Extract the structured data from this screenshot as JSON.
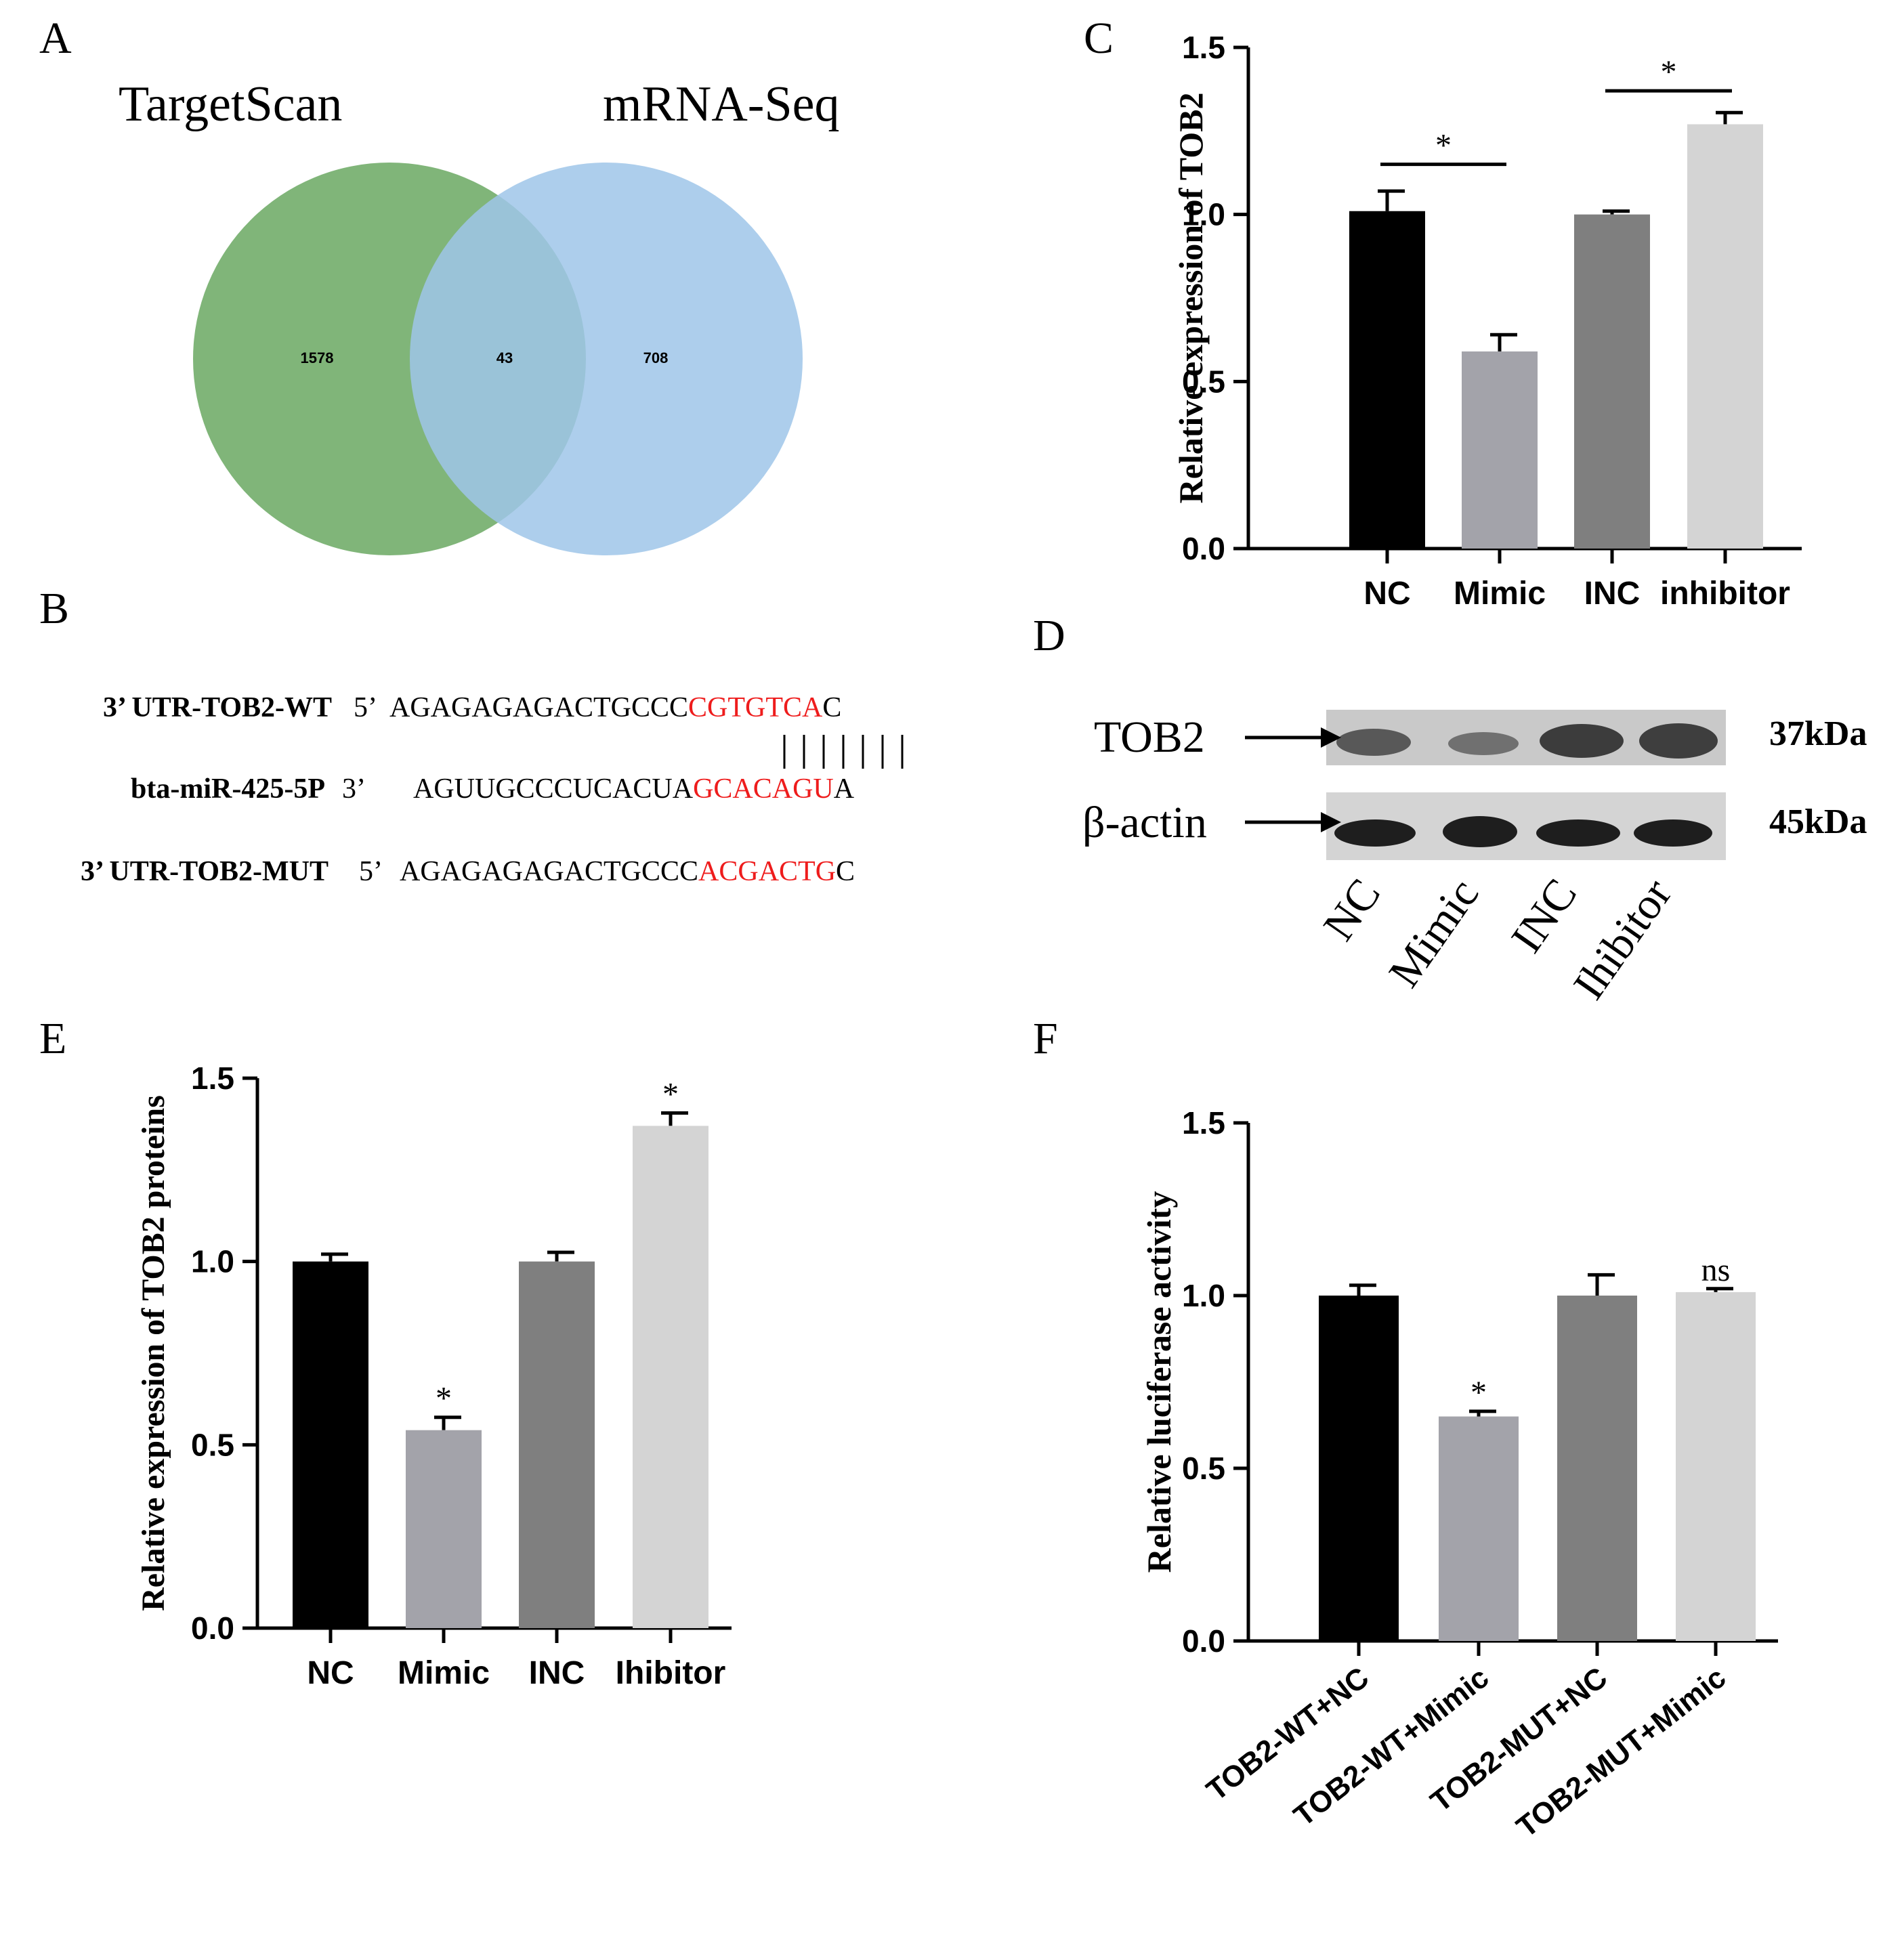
{
  "panels": {
    "A": {
      "letter": "A"
    },
    "B": {
      "letter": "B"
    },
    "C": {
      "letter": "C"
    },
    "D": {
      "letter": "D"
    },
    "E": {
      "letter": "E"
    },
    "F": {
      "letter": "F"
    }
  },
  "venn": {
    "left_label": "TargetScan",
    "right_label": "mRNA-Seq",
    "left_only": "1578",
    "overlap": "43",
    "right_only": "708",
    "colors": {
      "left": "#6aa861",
      "right": "#9fc6e9"
    }
  },
  "sequences": [
    {
      "name": "3’ UTR-TOB2-WT",
      "end": "5’",
      "prefix": "AGAGAGAGACTGCCC",
      "highlight": "CGTGTCA",
      "suffix": "C"
    },
    {
      "name": "bta-miR-425-5P",
      "end": "3’",
      "prefix": "AGUUGCCCUCACUA",
      "highlight": "GCACAGU",
      "suffix": "A"
    },
    {
      "name": "3’ UTR-TOB2-MUT",
      "end": "5’",
      "prefix": "AGAGAGAGACTGCCC",
      "highlight": "ACGACTG",
      "suffix": "C"
    }
  ],
  "pairing_bars": 7,
  "western_blot": {
    "bands": [
      {
        "label": "TOB2",
        "size": "37kDa"
      },
      {
        "label": "β-actin",
        "size": "45kDa"
      }
    ],
    "lanes": [
      "NC",
      "Mimic",
      "INC",
      "Ihibitor"
    ]
  },
  "chart_data": [
    {
      "panel": "C",
      "type": "bar",
      "categories": [
        "NC",
        "Mimic",
        "INC",
        "inhibitor"
      ],
      "values": [
        1.01,
        0.59,
        1.0,
        1.27
      ],
      "errors": [
        0.06,
        0.05,
        0.01,
        0.035
      ],
      "colors": [
        "#000000",
        "#a3a3aa",
        "#7f7f7f",
        "#d4d4d4"
      ],
      "title": "",
      "xlabel": "",
      "ylabel": "Relative expression of TOB2",
      "ylim": [
        0,
        1.5
      ],
      "yticks": [
        "0.0",
        "0.5",
        "1.0",
        "1.5"
      ],
      "significance": [
        {
          "from": 0,
          "to": 1,
          "label": "*",
          "y": 1.15
        },
        {
          "from": 2,
          "to": 3,
          "label": "*",
          "y": 1.37
        }
      ]
    },
    {
      "panel": "E",
      "type": "bar",
      "categories": [
        "NC",
        "Mimic",
        "INC",
        "Ihibitor"
      ],
      "values": [
        1.0,
        0.54,
        1.0,
        1.37
      ],
      "errors": [
        0.02,
        0.035,
        0.025,
        0.035
      ],
      "colors": [
        "#000000",
        "#a3a3aa",
        "#7f7f7f",
        "#d4d4d4"
      ],
      "title": "",
      "xlabel": "",
      "ylabel": "Relative expression of TOB2 proteins",
      "ylim": [
        0,
        1.5
      ],
      "yticks": [
        "0.0",
        "0.5",
        "1.0",
        "1.5"
      ],
      "bar_marks": [
        "",
        "*",
        "",
        "*"
      ]
    },
    {
      "panel": "F",
      "type": "bar",
      "categories": [
        "TOB2-WT+NC",
        "TOB2-WT+Mimic",
        "TOB2-MUT+NC",
        "TOB2-MUT+Mimic"
      ],
      "values": [
        1.0,
        0.65,
        1.0,
        1.01
      ],
      "errors": [
        0.03,
        0.015,
        0.06,
        0.01
      ],
      "colors": [
        "#000000",
        "#a3a3aa",
        "#7f7f7f",
        "#d4d4d4"
      ],
      "title": "",
      "xlabel": "",
      "ylabel": "Relative luciferase activity",
      "ylim": [
        0,
        1.5
      ],
      "yticks": [
        "0.0",
        "0.5",
        "1.0",
        "1.5"
      ],
      "bar_marks": [
        "",
        "*",
        "",
        "ns"
      ]
    }
  ]
}
